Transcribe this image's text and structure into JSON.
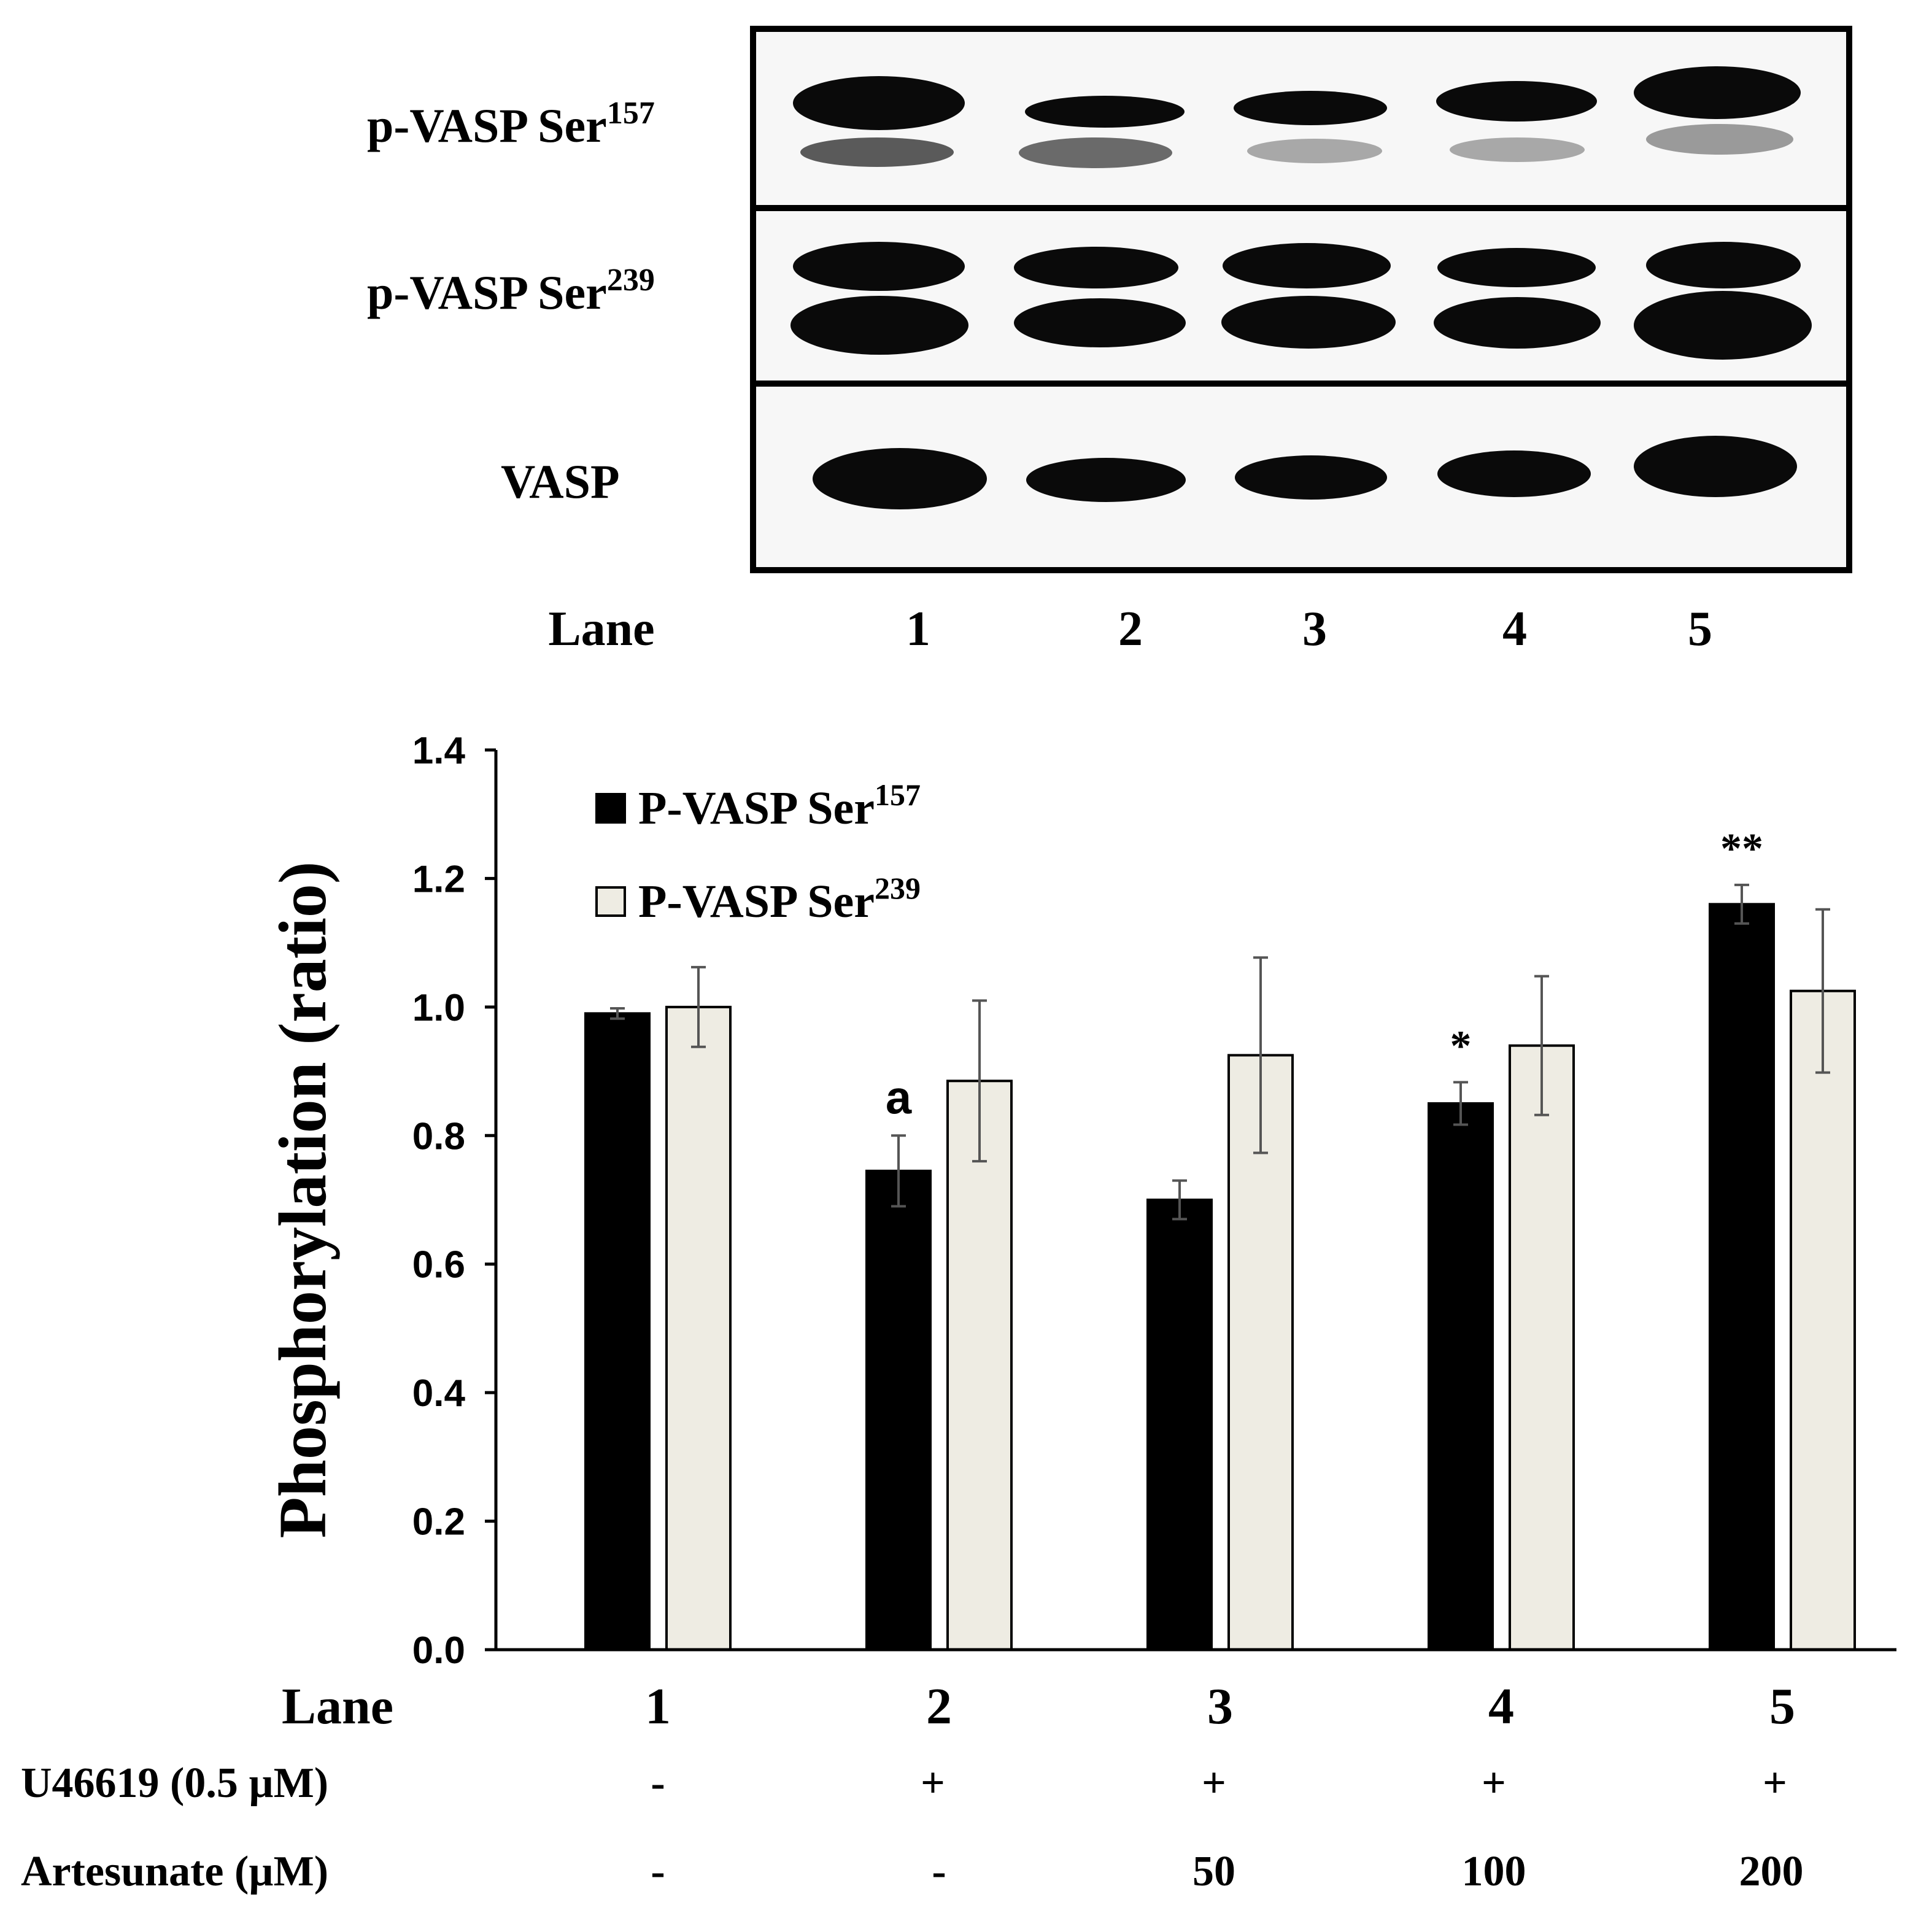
{
  "blot": {
    "rows": [
      {
        "base": "p-VASP Ser",
        "sup": "157"
      },
      {
        "base": "p-VASP Ser",
        "sup": "239"
      },
      {
        "base": "VASP",
        "sup": ""
      }
    ],
    "lane_label": "Lane",
    "lanes": [
      "1",
      "2",
      "3",
      "4",
      "5"
    ]
  },
  "chart_data": {
    "type": "bar",
    "ylabel": "Phosphorylation (ratio)",
    "ylim": [
      0,
      1.4
    ],
    "yticks": [
      "0.0",
      "0.2",
      "0.4",
      "0.6",
      "0.8",
      "1.0",
      "1.2",
      "1.4"
    ],
    "x_label": "Lane",
    "categories": [
      "1",
      "2",
      "3",
      "4",
      "5"
    ],
    "series": [
      {
        "name_base": "P-VASP Ser",
        "name_sup": "157",
        "color": "#000000",
        "values": [
          0.99,
          0.745,
          0.7,
          0.85,
          1.16
        ],
        "errors": [
          0.008,
          0.055,
          0.03,
          0.033,
          0.03
        ],
        "annotations": [
          "",
          "a",
          "",
          "*",
          "**"
        ]
      },
      {
        "name_base": "P-VASP Ser",
        "name_sup": "239",
        "color": "#eeece3",
        "values": [
          1.0,
          0.885,
          0.925,
          0.94,
          1.025
        ],
        "errors": [
          0.062,
          0.125,
          0.152,
          0.108,
          0.127
        ],
        "annotations": [
          "",
          "",
          "",
          "",
          ""
        ]
      }
    ],
    "legend_position": "top-left",
    "grid": false
  },
  "conditions": [
    {
      "label": "U46619  (0.5 µM)",
      "values": [
        "-",
        "+",
        "+",
        "+",
        "+"
      ]
    },
    {
      "label": "Artesunate (µM)",
      "values": [
        "-",
        "-",
        "50",
        "100",
        "200"
      ]
    }
  ]
}
